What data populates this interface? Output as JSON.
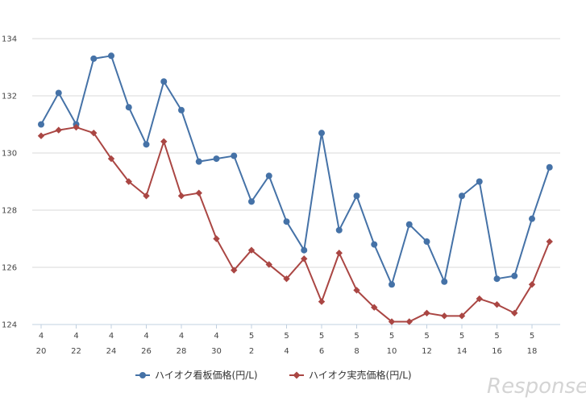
{
  "chart_data": {
    "type": "line",
    "title": "",
    "xlabel": "",
    "ylabel": "",
    "ylim": [
      124,
      134
    ],
    "yticks": [
      124,
      126,
      128,
      130,
      132,
      134
    ],
    "grid": true,
    "legend_position": "bottom",
    "x_ticks": [
      {
        "month": "4",
        "day": "20"
      },
      {
        "month": "4",
        "day": "22"
      },
      {
        "month": "4",
        "day": "24"
      },
      {
        "month": "4",
        "day": "26"
      },
      {
        "month": "4",
        "day": "28"
      },
      {
        "month": "4",
        "day": "30"
      },
      {
        "month": "5",
        "day": "2"
      },
      {
        "month": "5",
        "day": "4"
      },
      {
        "month": "5",
        "day": "6"
      },
      {
        "month": "5",
        "day": "8"
      },
      {
        "month": "5",
        "day": "10"
      },
      {
        "month": "5",
        "day": "12"
      },
      {
        "month": "5",
        "day": "14"
      },
      {
        "month": "5",
        "day": "16"
      },
      {
        "month": "5",
        "day": "18"
      }
    ],
    "series": [
      {
        "name": "ハイオク看板価格(円/L)",
        "color": "#4572a7",
        "marker": "circle",
        "values": [
          131.0,
          132.1,
          131.0,
          133.3,
          133.4,
          131.6,
          130.3,
          132.5,
          131.5,
          129.7,
          129.8,
          129.9,
          128.3,
          129.2,
          127.6,
          126.6,
          130.7,
          127.3,
          128.5,
          126.8,
          125.4,
          127.5,
          126.9,
          125.5,
          128.5,
          129.0,
          125.6,
          125.7,
          127.7,
          129.5
        ]
      },
      {
        "name": "ハイオク実売価格(円/L)",
        "color": "#aa4643",
        "marker": "diamond",
        "values": [
          130.6,
          130.8,
          130.9,
          130.7,
          129.8,
          129.0,
          128.5,
          130.4,
          128.5,
          128.6,
          127.0,
          125.9,
          126.6,
          126.1,
          125.6,
          126.3,
          124.8,
          126.5,
          125.2,
          124.6,
          124.1,
          124.1,
          124.4,
          124.3,
          124.3,
          124.9,
          124.7,
          124.4,
          125.4,
          126.9
        ]
      }
    ]
  },
  "watermark": "Response."
}
